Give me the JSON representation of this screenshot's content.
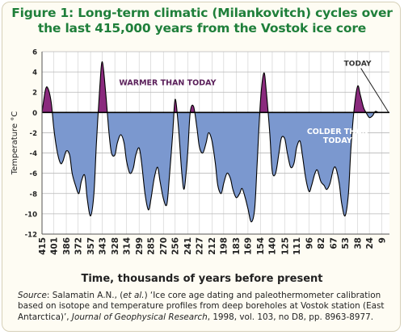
{
  "title": {
    "line1": "Figure 1: Long-term climatic (Milankovitch) cycles over",
    "line2": "the last 415,000 years from the Vostok ice core"
  },
  "source": {
    "label": "Source",
    "authors_pre": ": Salamatin A.N., (",
    "et_al": "et al.",
    "authors_post": ") ‘Ice core age dating and paleothermometer calibration based on isotope and temperature profiles from deep boreholes at Vostok station (East Antarctica)’, ",
    "journal": "Journal of Geophysical Research",
    "rest": ", 1998, vol. 103, no D8, pp. 8963-8977."
  },
  "colors": {
    "warm_fill": "#8a2a7d",
    "cold_fill": "#7b98cf",
    "curve": "#000000",
    "grid": "#b8b8b8",
    "title": "#1f7f3a",
    "warm_text": "#5a1f5a",
    "cold_text": "#ffffff"
  },
  "chart_data": {
    "type": "area",
    "title": "Figure 1: Long-term climatic (Milankovitch) cycles over the last 415,000 years from the Vostok ice core",
    "xlabel": "Time, thousands of years before present",
    "ylabel": "Temperature °C",
    "x_reversed": true,
    "xlim": [
      415,
      0
    ],
    "ylim": [
      -12,
      6
    ],
    "yticks": [
      6,
      4,
      2,
      0,
      -2,
      -4,
      -6,
      -8,
      -10,
      -12
    ],
    "xticks": [
      415,
      401,
      386,
      372,
      357,
      343,
      328,
      314,
      299,
      285,
      270,
      256,
      241,
      227,
      212,
      198,
      183,
      169,
      154,
      140,
      125,
      111,
      96,
      82,
      67,
      53,
      38,
      24,
      9
    ],
    "grid": true,
    "baseline": 0,
    "annotations": [
      {
        "text": "WARMER THAN TODAY",
        "x": 265,
        "y": 3.0
      },
      {
        "text": "COLDER THAN\nTODAY",
        "x": 62,
        "y": -1.8
      },
      {
        "text": "TODAY",
        "x": 20,
        "y": 1.5
      }
    ],
    "series": [
      {
        "x": [
          415,
          411,
          408,
          404,
          401,
          397,
          393,
          390,
          386,
          382,
          379,
          375,
          371,
          368,
          364,
          361,
          357,
          353,
          350,
          346,
          343,
          339,
          335,
          332,
          328,
          325,
          321,
          317,
          314,
          310,
          306,
          303,
          299,
          296,
          292,
          288,
          285,
          281,
          277,
          274,
          270,
          266,
          263,
          259,
          256,
          252,
          248,
          245,
          241,
          238,
          234,
          230,
          227,
          223,
          219,
          216,
          212,
          208,
          205,
          201,
          198,
          194,
          190,
          187,
          183,
          179,
          176,
          172,
          169,
          165,
          161,
          158,
          154,
          150,
          147,
          143,
          140,
          136,
          132,
          129,
          125,
          122,
          118,
          114,
          111,
          107,
          104,
          100,
          96,
          93,
          89,
          86,
          82,
          78,
          75,
          71,
          67,
          64,
          60,
          57,
          53,
          49,
          46,
          42,
          38,
          35,
          31,
          28,
          24,
          20,
          17,
          13,
          9,
          6,
          2,
          0
        ],
        "values": [
          0.0,
          2.2,
          2.4,
          1.0,
          -1.5,
          -3.8,
          -5.0,
          -4.8,
          -3.8,
          -4.2,
          -6.0,
          -7.2,
          -8.0,
          -6.8,
          -6.2,
          -8.5,
          -10.2,
          -8.0,
          -3.0,
          2.5,
          5.0,
          2.0,
          -2.0,
          -4.0,
          -4.2,
          -3.0,
          -2.2,
          -3.0,
          -4.8,
          -6.0,
          -5.5,
          -4.2,
          -3.5,
          -5.0,
          -8.0,
          -9.6,
          -8.6,
          -6.5,
          -5.4,
          -6.8,
          -8.5,
          -9.1,
          -6.5,
          -2.2,
          1.3,
          -1.5,
          -6.0,
          -7.5,
          -4.0,
          0.0,
          0.6,
          -1.5,
          -3.4,
          -4.0,
          -3.0,
          -2.0,
          -2.8,
          -5.0,
          -7.2,
          -8.0,
          -7.0,
          -6.0,
          -6.5,
          -7.6,
          -8.4,
          -8.0,
          -7.5,
          -8.5,
          -9.5,
          -10.8,
          -9.5,
          -5.0,
          1.2,
          3.9,
          2.0,
          -2.0,
          -5.8,
          -6.0,
          -4.0,
          -2.5,
          -2.6,
          -4.0,
          -5.4,
          -5.0,
          -3.5,
          -2.8,
          -4.2,
          -6.5,
          -7.8,
          -7.2,
          -6.0,
          -5.7,
          -6.8,
          -7.2,
          -7.6,
          -7.0,
          -5.6,
          -5.5,
          -7.0,
          -9.0,
          -10.2,
          -8.0,
          -3.5,
          0.5,
          2.6,
          1.8,
          0.5,
          0.0,
          -0.5,
          -0.3,
          0.1,
          0.0,
          0.0,
          0.0,
          0.0,
          0.0
        ]
      }
    ]
  }
}
